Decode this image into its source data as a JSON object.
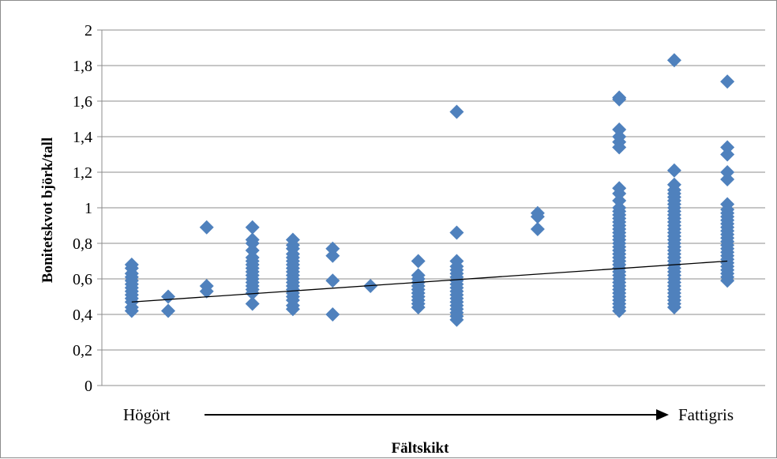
{
  "chart_data": {
    "type": "scatter",
    "title": "",
    "ylabel": "Bonitetskvot björk/tall",
    "xlabel": "Fältskikt",
    "x_start_label": "Högört",
    "x_end_label": "Fattigris",
    "ylim": [
      0,
      2
    ],
    "yticks": [
      "0",
      "0,2",
      "0,4",
      "0,6",
      "0,8",
      "1",
      "1,2",
      "1,4",
      "1,6",
      "1,8",
      "2"
    ],
    "xlim": [
      0,
      1
    ],
    "grid": true,
    "marker_color": "#4f81bd",
    "trendline": {
      "x": [
        0.045,
        0.943
      ],
      "y": [
        0.47,
        0.7
      ],
      "color": "#000000"
    },
    "points": [
      {
        "x": 0.045,
        "y": 0.42
      },
      {
        "x": 0.045,
        "y": 0.44
      },
      {
        "x": 0.045,
        "y": 0.47
      },
      {
        "x": 0.045,
        "y": 0.49
      },
      {
        "x": 0.045,
        "y": 0.51
      },
      {
        "x": 0.045,
        "y": 0.53
      },
      {
        "x": 0.045,
        "y": 0.55
      },
      {
        "x": 0.045,
        "y": 0.57
      },
      {
        "x": 0.045,
        "y": 0.59
      },
      {
        "x": 0.045,
        "y": 0.61
      },
      {
        "x": 0.045,
        "y": 0.63
      },
      {
        "x": 0.045,
        "y": 0.66
      },
      {
        "x": 0.045,
        "y": 0.68
      },
      {
        "x": 0.1,
        "y": 0.42
      },
      {
        "x": 0.1,
        "y": 0.5
      },
      {
        "x": 0.158,
        "y": 0.53
      },
      {
        "x": 0.158,
        "y": 0.56
      },
      {
        "x": 0.158,
        "y": 0.89
      },
      {
        "x": 0.227,
        "y": 0.46
      },
      {
        "x": 0.227,
        "y": 0.52
      },
      {
        "x": 0.227,
        "y": 0.54
      },
      {
        "x": 0.227,
        "y": 0.56
      },
      {
        "x": 0.227,
        "y": 0.58
      },
      {
        "x": 0.227,
        "y": 0.6
      },
      {
        "x": 0.227,
        "y": 0.62
      },
      {
        "x": 0.227,
        "y": 0.64
      },
      {
        "x": 0.227,
        "y": 0.66
      },
      {
        "x": 0.227,
        "y": 0.68
      },
      {
        "x": 0.227,
        "y": 0.7
      },
      {
        "x": 0.227,
        "y": 0.72
      },
      {
        "x": 0.227,
        "y": 0.76
      },
      {
        "x": 0.227,
        "y": 0.8
      },
      {
        "x": 0.227,
        "y": 0.82
      },
      {
        "x": 0.227,
        "y": 0.89
      },
      {
        "x": 0.288,
        "y": 0.43
      },
      {
        "x": 0.288,
        "y": 0.45
      },
      {
        "x": 0.288,
        "y": 0.48
      },
      {
        "x": 0.288,
        "y": 0.5
      },
      {
        "x": 0.288,
        "y": 0.52
      },
      {
        "x": 0.288,
        "y": 0.54
      },
      {
        "x": 0.288,
        "y": 0.56
      },
      {
        "x": 0.288,
        "y": 0.58
      },
      {
        "x": 0.288,
        "y": 0.6
      },
      {
        "x": 0.288,
        "y": 0.62
      },
      {
        "x": 0.288,
        "y": 0.64
      },
      {
        "x": 0.288,
        "y": 0.66
      },
      {
        "x": 0.288,
        "y": 0.68
      },
      {
        "x": 0.288,
        "y": 0.7
      },
      {
        "x": 0.288,
        "y": 0.72
      },
      {
        "x": 0.288,
        "y": 0.74
      },
      {
        "x": 0.288,
        "y": 0.77
      },
      {
        "x": 0.288,
        "y": 0.79
      },
      {
        "x": 0.288,
        "y": 0.82
      },
      {
        "x": 0.348,
        "y": 0.4
      },
      {
        "x": 0.348,
        "y": 0.59
      },
      {
        "x": 0.348,
        "y": 0.73
      },
      {
        "x": 0.348,
        "y": 0.77
      },
      {
        "x": 0.405,
        "y": 0.56
      },
      {
        "x": 0.477,
        "y": 0.44
      },
      {
        "x": 0.477,
        "y": 0.46
      },
      {
        "x": 0.477,
        "y": 0.48
      },
      {
        "x": 0.477,
        "y": 0.5
      },
      {
        "x": 0.477,
        "y": 0.52
      },
      {
        "x": 0.477,
        "y": 0.54
      },
      {
        "x": 0.477,
        "y": 0.56
      },
      {
        "x": 0.477,
        "y": 0.58
      },
      {
        "x": 0.477,
        "y": 0.6
      },
      {
        "x": 0.477,
        "y": 0.62
      },
      {
        "x": 0.477,
        "y": 0.7
      },
      {
        "x": 0.535,
        "y": 0.37
      },
      {
        "x": 0.535,
        "y": 0.39
      },
      {
        "x": 0.535,
        "y": 0.41
      },
      {
        "x": 0.535,
        "y": 0.43
      },
      {
        "x": 0.535,
        "y": 0.45
      },
      {
        "x": 0.535,
        "y": 0.47
      },
      {
        "x": 0.535,
        "y": 0.49
      },
      {
        "x": 0.535,
        "y": 0.51
      },
      {
        "x": 0.535,
        "y": 0.53
      },
      {
        "x": 0.535,
        "y": 0.55
      },
      {
        "x": 0.535,
        "y": 0.57
      },
      {
        "x": 0.535,
        "y": 0.59
      },
      {
        "x": 0.535,
        "y": 0.61
      },
      {
        "x": 0.535,
        "y": 0.63
      },
      {
        "x": 0.535,
        "y": 0.65
      },
      {
        "x": 0.535,
        "y": 0.67
      },
      {
        "x": 0.535,
        "y": 0.7
      },
      {
        "x": 0.535,
        "y": 0.86
      },
      {
        "x": 0.535,
        "y": 1.54
      },
      {
        "x": 0.657,
        "y": 0.88
      },
      {
        "x": 0.657,
        "y": 0.95
      },
      {
        "x": 0.657,
        "y": 0.97
      },
      {
        "x": 0.78,
        "y": 0.42
      },
      {
        "x": 0.78,
        "y": 0.44
      },
      {
        "x": 0.78,
        "y": 0.46
      },
      {
        "x": 0.78,
        "y": 0.48
      },
      {
        "x": 0.78,
        "y": 0.5
      },
      {
        "x": 0.78,
        "y": 0.52
      },
      {
        "x": 0.78,
        "y": 0.54
      },
      {
        "x": 0.78,
        "y": 0.56
      },
      {
        "x": 0.78,
        "y": 0.58
      },
      {
        "x": 0.78,
        "y": 0.6
      },
      {
        "x": 0.78,
        "y": 0.62
      },
      {
        "x": 0.78,
        "y": 0.64
      },
      {
        "x": 0.78,
        "y": 0.66
      },
      {
        "x": 0.78,
        "y": 0.68
      },
      {
        "x": 0.78,
        "y": 0.7
      },
      {
        "x": 0.78,
        "y": 0.72
      },
      {
        "x": 0.78,
        "y": 0.74
      },
      {
        "x": 0.78,
        "y": 0.76
      },
      {
        "x": 0.78,
        "y": 0.78
      },
      {
        "x": 0.78,
        "y": 0.8
      },
      {
        "x": 0.78,
        "y": 0.82
      },
      {
        "x": 0.78,
        "y": 0.84
      },
      {
        "x": 0.78,
        "y": 0.86
      },
      {
        "x": 0.78,
        "y": 0.88
      },
      {
        "x": 0.78,
        "y": 0.9
      },
      {
        "x": 0.78,
        "y": 0.92
      },
      {
        "x": 0.78,
        "y": 0.94
      },
      {
        "x": 0.78,
        "y": 0.96
      },
      {
        "x": 0.78,
        "y": 0.98
      },
      {
        "x": 0.78,
        "y": 1.0
      },
      {
        "x": 0.78,
        "y": 1.04
      },
      {
        "x": 0.78,
        "y": 1.08
      },
      {
        "x": 0.78,
        "y": 1.11
      },
      {
        "x": 0.78,
        "y": 1.34
      },
      {
        "x": 0.78,
        "y": 1.37
      },
      {
        "x": 0.78,
        "y": 1.4
      },
      {
        "x": 0.78,
        "y": 1.44
      },
      {
        "x": 0.78,
        "y": 1.61
      },
      {
        "x": 0.78,
        "y": 1.62
      },
      {
        "x": 0.863,
        "y": 0.44
      },
      {
        "x": 0.863,
        "y": 0.46
      },
      {
        "x": 0.863,
        "y": 0.48
      },
      {
        "x": 0.863,
        "y": 0.5
      },
      {
        "x": 0.863,
        "y": 0.52
      },
      {
        "x": 0.863,
        "y": 0.54
      },
      {
        "x": 0.863,
        "y": 0.56
      },
      {
        "x": 0.863,
        "y": 0.58
      },
      {
        "x": 0.863,
        "y": 0.6
      },
      {
        "x": 0.863,
        "y": 0.62
      },
      {
        "x": 0.863,
        "y": 0.64
      },
      {
        "x": 0.863,
        "y": 0.66
      },
      {
        "x": 0.863,
        "y": 0.68
      },
      {
        "x": 0.863,
        "y": 0.7
      },
      {
        "x": 0.863,
        "y": 0.72
      },
      {
        "x": 0.863,
        "y": 0.74
      },
      {
        "x": 0.863,
        "y": 0.76
      },
      {
        "x": 0.863,
        "y": 0.78
      },
      {
        "x": 0.863,
        "y": 0.8
      },
      {
        "x": 0.863,
        "y": 0.82
      },
      {
        "x": 0.863,
        "y": 0.84
      },
      {
        "x": 0.863,
        "y": 0.86
      },
      {
        "x": 0.863,
        "y": 0.88
      },
      {
        "x": 0.863,
        "y": 0.9
      },
      {
        "x": 0.863,
        "y": 0.92
      },
      {
        "x": 0.863,
        "y": 0.94
      },
      {
        "x": 0.863,
        "y": 0.96
      },
      {
        "x": 0.863,
        "y": 0.98
      },
      {
        "x": 0.863,
        "y": 1.0
      },
      {
        "x": 0.863,
        "y": 1.02
      },
      {
        "x": 0.863,
        "y": 1.04
      },
      {
        "x": 0.863,
        "y": 1.06
      },
      {
        "x": 0.863,
        "y": 1.08
      },
      {
        "x": 0.863,
        "y": 1.1
      },
      {
        "x": 0.863,
        "y": 1.13
      },
      {
        "x": 0.863,
        "y": 1.21
      },
      {
        "x": 0.863,
        "y": 1.83
      },
      {
        "x": 0.943,
        "y": 0.59
      },
      {
        "x": 0.943,
        "y": 0.61
      },
      {
        "x": 0.943,
        "y": 0.63
      },
      {
        "x": 0.943,
        "y": 0.65
      },
      {
        "x": 0.943,
        "y": 0.67
      },
      {
        "x": 0.943,
        "y": 0.69
      },
      {
        "x": 0.943,
        "y": 0.71
      },
      {
        "x": 0.943,
        "y": 0.73
      },
      {
        "x": 0.943,
        "y": 0.75
      },
      {
        "x": 0.943,
        "y": 0.77
      },
      {
        "x": 0.943,
        "y": 0.79
      },
      {
        "x": 0.943,
        "y": 0.81
      },
      {
        "x": 0.943,
        "y": 0.83
      },
      {
        "x": 0.943,
        "y": 0.85
      },
      {
        "x": 0.943,
        "y": 0.87
      },
      {
        "x": 0.943,
        "y": 0.89
      },
      {
        "x": 0.943,
        "y": 0.91
      },
      {
        "x": 0.943,
        "y": 0.93
      },
      {
        "x": 0.943,
        "y": 0.95
      },
      {
        "x": 0.943,
        "y": 0.97
      },
      {
        "x": 0.943,
        "y": 0.99
      },
      {
        "x": 0.943,
        "y": 1.02
      },
      {
        "x": 0.943,
        "y": 1.16
      },
      {
        "x": 0.943,
        "y": 1.2
      },
      {
        "x": 0.943,
        "y": 1.3
      },
      {
        "x": 0.943,
        "y": 1.34
      },
      {
        "x": 0.943,
        "y": 1.71
      }
    ]
  }
}
